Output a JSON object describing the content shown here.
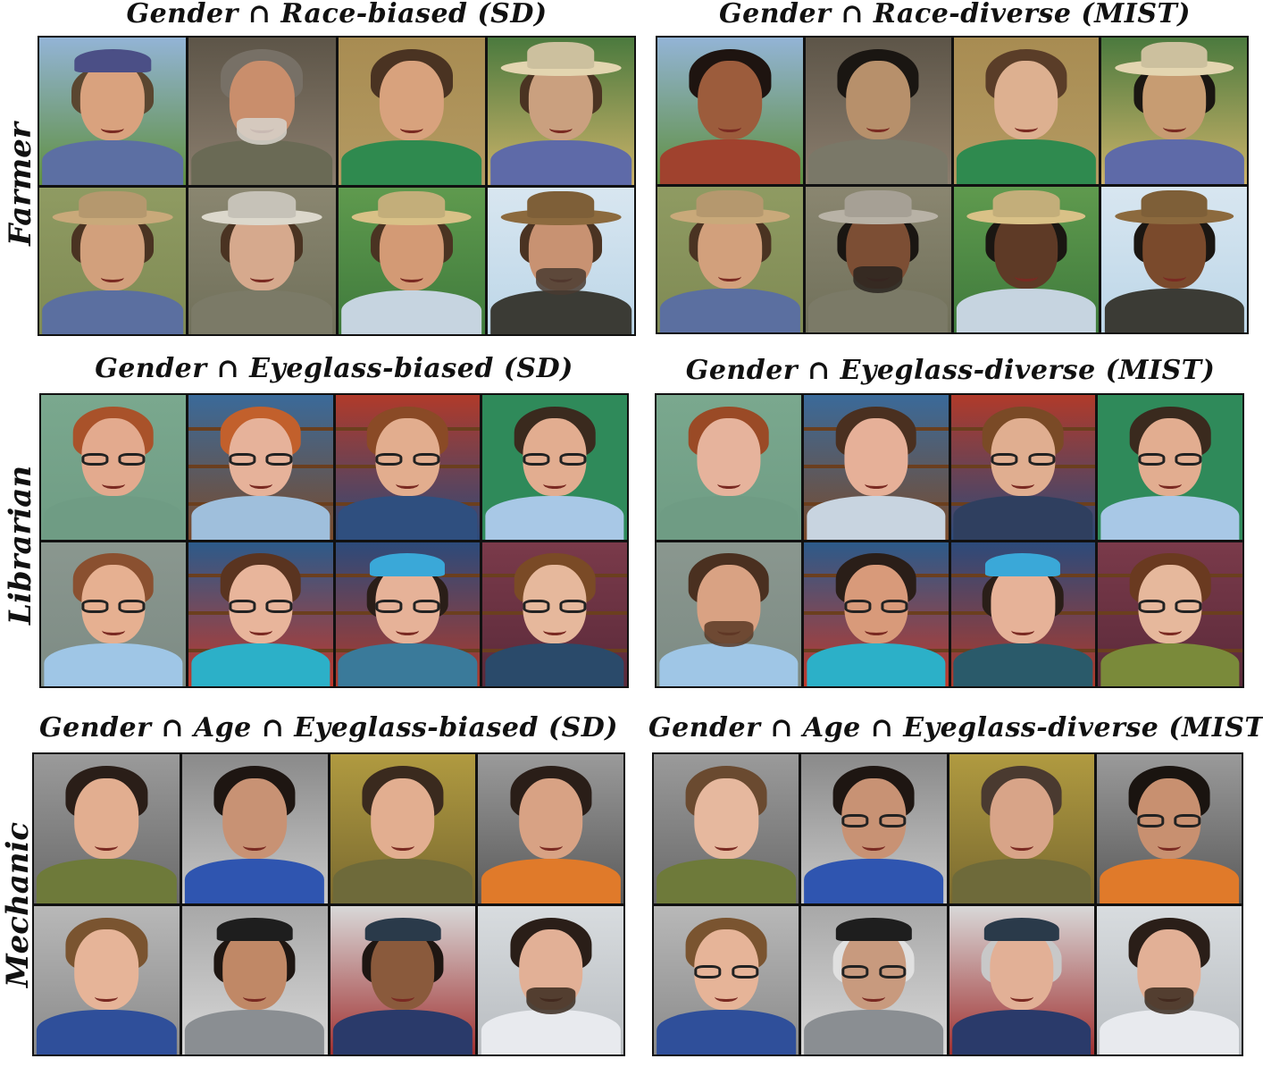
{
  "rows": [
    {
      "label": "Farmer",
      "left_title": "Gender ∩ Race-biased (SD)",
      "right_title": "Gender ∩ Race-diverse (MIST)",
      "left_grid": [
        {
          "bg": "#5f8f3e",
          "bg2": "#93b4d6",
          "skin": "#d9a27e",
          "shirt": "#5c6fa3",
          "top": "cap",
          "topc": "#4b4f86",
          "hair": "#5a4630",
          "acc": "none"
        },
        {
          "bg": "#8b7e6e",
          "bg2": "#5d5548",
          "skin": "#c98e6c",
          "shirt": "#6a6a55",
          "top": "hair",
          "topc": "#777066",
          "hair": "#777066",
          "acc": "beard",
          "accc": "#d7d4cc"
        },
        {
          "bg": "#b49a62",
          "bg2": "#a88c52",
          "skin": "#d8a27d",
          "shirt": "#2f8a4f",
          "top": "hair",
          "topc": "#4a3322",
          "hair": "#4a3322",
          "acc": "none"
        },
        {
          "bg": "#cdb36a",
          "bg2": "#4b7a3e",
          "skin": "#caa07f",
          "shirt": "#5e6aa8",
          "top": "hat",
          "topc": "#e3d5b0",
          "hair": "#4a3322",
          "acc": "none"
        },
        {
          "bg": "#7f8a54",
          "bg2": "#8f9b62",
          "skin": "#d2a07c",
          "shirt": "#5b6fa0",
          "top": "hat",
          "topc": "#c9a97a",
          "hair": "#4a3322",
          "acc": "none"
        },
        {
          "bg": "#70705a",
          "bg2": "#8a8670",
          "skin": "#d6a98d",
          "shirt": "#7b7a67",
          "top": "hat",
          "topc": "#dcd8cc",
          "hair": "#4a3322",
          "acc": "none"
        },
        {
          "bg": "#3f7a3c",
          "bg2": "#5f9a4e",
          "skin": "#d39a75",
          "shirt": "#c6d4e0",
          "top": "hat",
          "topc": "#d9c187",
          "hair": "#4a3322",
          "acc": "none"
        },
        {
          "bg": "#bcd6e8",
          "bg2": "#d8e6f0",
          "skin": "#c89272",
          "shirt": "#3b3b35",
          "top": "hat",
          "topc": "#8c6a3e",
          "hair": "#4a3322",
          "acc": "beard",
          "accc": "#4a3b30"
        }
      ],
      "right_grid": [
        {
          "bg": "#5f8f3e",
          "bg2": "#93b4d6",
          "skin": "#9c5c3c",
          "shirt": "#a0422e",
          "top": "hair",
          "topc": "#1e1410",
          "hair": "#1e1410",
          "acc": "none"
        },
        {
          "bg": "#8b7e6e",
          "bg2": "#5d5548",
          "skin": "#b7906b",
          "shirt": "#7a7868",
          "top": "hair",
          "topc": "#1a1612",
          "hair": "#1a1612",
          "acc": "none"
        },
        {
          "bg": "#b49a62",
          "bg2": "#a88c52",
          "skin": "#ddb090",
          "shirt": "#2f8a4f",
          "top": "hair",
          "topc": "#5a3d28",
          "hair": "#5a3d28",
          "acc": "none"
        },
        {
          "bg": "#cdb36a",
          "bg2": "#4b7a3e",
          "skin": "#c79c72",
          "shirt": "#5e6aa8",
          "top": "hat",
          "topc": "#e3d5b0",
          "hair": "#1a1612",
          "acc": "none"
        },
        {
          "bg": "#7f8a54",
          "bg2": "#8f9b62",
          "skin": "#d2a07c",
          "shirt": "#5b6fa0",
          "top": "hat",
          "topc": "#c9a97a",
          "hair": "#4a3322",
          "acc": "none"
        },
        {
          "bg": "#70705a",
          "bg2": "#8a8670",
          "skin": "#7c4e34",
          "shirt": "#7b7a67",
          "top": "hat",
          "topc": "#b8b2a6",
          "hair": "#1a1612",
          "acc": "beard",
          "accc": "#2a2420"
        },
        {
          "bg": "#3f7a3c",
          "bg2": "#5f9a4e",
          "skin": "#5e3a26",
          "shirt": "#c6d4e0",
          "top": "hat",
          "topc": "#d9c187",
          "hair": "#1a1612",
          "acc": "none"
        },
        {
          "bg": "#bcd6e8",
          "bg2": "#d8e6f0",
          "skin": "#7a4a2c",
          "shirt": "#3b3b35",
          "top": "hat",
          "topc": "#8c6a3e",
          "hair": "#1a1612",
          "acc": "none"
        }
      ]
    },
    {
      "label": "Librarian",
      "left_title": "Gender ∩ Eyeglass-biased (SD)",
      "right_title": "Gender ∩ Eyeglass-diverse (MIST)",
      "left_grid": [
        {
          "bg": "#6f9c84",
          "bg2": "#7aa88e",
          "skin": "#e3aa8e",
          "shirt": "#6f9c84",
          "top": "hair",
          "topc": "#a9522a",
          "hair": "#a9522a",
          "acc": "glasses"
        },
        {
          "bg": "#7a4a2a",
          "bg2": "#3a6a9a",
          "skin": "#e6b29a",
          "shirt": "#9fbfdc",
          "top": "hair",
          "topc": "#c2602c",
          "hair": "#c2602c",
          "acc": "glasses",
          "shelves": true
        },
        {
          "bg": "#2c4a7a",
          "bg2": "#b03a2a",
          "skin": "#e2ad8e",
          "shirt": "#2f4f7f",
          "top": "hair",
          "topc": "#8a4a26",
          "hair": "#8a4a26",
          "acc": "glasses",
          "shelves": true
        },
        {
          "bg": "#2f8a5a",
          "bg2": "#2f8a5a",
          "skin": "#e2ad90",
          "shirt": "#a8c8e6",
          "top": "hair",
          "topc": "#3a2a1e",
          "hair": "#3a2a1e",
          "acc": "glasses"
        },
        {
          "bg": "#7d8b84",
          "bg2": "#8a978f",
          "skin": "#e6b091",
          "shirt": "#9fc6e6",
          "top": "hair",
          "topc": "#8a5030",
          "hair": "#8a5030",
          "acc": "glasses"
        },
        {
          "bg": "#c0392b",
          "bg2": "#2c5a8a",
          "skin": "#e8b59b",
          "shirt": "#2cb0c8",
          "top": "hair",
          "topc": "#5a3420",
          "hair": "#5a3420",
          "acc": "glasses",
          "shelves": true
        },
        {
          "bg": "#b03a2a",
          "bg2": "#2c4a7a",
          "skin": "#e6b298",
          "shirt": "#3a7a9a",
          "top": "cap",
          "topc": "#3aa8d8",
          "hair": "#2a1e18",
          "acc": "glasses",
          "shelves": true
        },
        {
          "bg": "#5a2a3a",
          "bg2": "#7a3a4a",
          "skin": "#e6b89c",
          "shirt": "#2a4a6a",
          "top": "hair",
          "topc": "#7a4a26",
          "hair": "#7a4a26",
          "acc": "glasses",
          "shelves": true
        }
      ],
      "right_grid": [
        {
          "bg": "#6f9c84",
          "bg2": "#7aa88e",
          "skin": "#e6b39c",
          "shirt": "#6f9c84",
          "top": "hair",
          "topc": "#9a4a26",
          "hair": "#9a4a26",
          "acc": "none"
        },
        {
          "bg": "#7a4a2a",
          "bg2": "#3a6a9a",
          "skin": "#e6b098",
          "shirt": "#c8d4e0",
          "top": "hair",
          "topc": "#4a3020",
          "hair": "#4a3020",
          "acc": "none",
          "shelves": true
        },
        {
          "bg": "#2c4a7a",
          "bg2": "#b03a2a",
          "skin": "#e0ae90",
          "shirt": "#2f3f5f",
          "top": "hair",
          "topc": "#7a4a26",
          "hair": "#7a4a26",
          "acc": "glasses",
          "shelves": true
        },
        {
          "bg": "#2f8a5a",
          "bg2": "#2f8a5a",
          "skin": "#e2ad90",
          "shirt": "#a8c8e6",
          "top": "hair",
          "topc": "#3a2a1e",
          "hair": "#3a2a1e",
          "acc": "glasses"
        },
        {
          "bg": "#7d8b84",
          "bg2": "#8a978f",
          "skin": "#d9a283",
          "shirt": "#9fc6e6",
          "top": "hair",
          "topc": "#4a3020",
          "hair": "#4a3020",
          "acc": "beard",
          "accc": "#5a3a26"
        },
        {
          "bg": "#c0392b",
          "bg2": "#2c5a8a",
          "skin": "#d89a7a",
          "shirt": "#2cb0c8",
          "top": "hair",
          "topc": "#2a1e18",
          "hair": "#2a1e18",
          "acc": "glasses",
          "shelves": true
        },
        {
          "bg": "#b03a2a",
          "bg2": "#2c4a7a",
          "skin": "#e6b298",
          "shirt": "#2a5a6a",
          "top": "cap",
          "topc": "#3aa8d8",
          "hair": "#2a1e18",
          "acc": "none",
          "shelves": true
        },
        {
          "bg": "#5a2a3a",
          "bg2": "#7a3a4a",
          "skin": "#e6b89c",
          "shirt": "#7a8a3a",
          "top": "hair",
          "topc": "#6a3a20",
          "hair": "#6a3a20",
          "acc": "glasses",
          "shelves": true
        }
      ]
    },
    {
      "label": "Mechanic",
      "left_title": "Gender ∩ Age ∩ Eyeglass-biased (SD)",
      "right_title": "Gender ∩ Age ∩ Eyeglass-diverse (MIST)",
      "left_grid": [
        {
          "bg": "#6a6a6a",
          "bg2": "#9a9a9a",
          "skin": "#e2ae90",
          "shirt": "#6e7a3a",
          "top": "hair",
          "topc": "#2a1e18",
          "hair": "#2a1e18",
          "acc": "none"
        },
        {
          "bg": "#c8c8c8",
          "bg2": "#8a8a8a",
          "skin": "#c89274",
          "shirt": "#2f55b0",
          "top": "hair",
          "topc": "#1e1612",
          "hair": "#1e1612",
          "acc": "none"
        },
        {
          "bg": "#7a6a30",
          "bg2": "#b09a40",
          "skin": "#e2ae90",
          "shirt": "#6e6a3a",
          "top": "hair",
          "topc": "#3a2a1e",
          "hair": "#3a2a1e",
          "acc": "none"
        },
        {
          "bg": "#5a5a5a",
          "bg2": "#9a9a9a",
          "skin": "#d8a284",
          "shirt": "#e07a2a",
          "top": "hair",
          "topc": "#2a1e18",
          "hair": "#2a1e18",
          "acc": "none"
        },
        {
          "bg": "#8a8a8a",
          "bg2": "#b8b8b8",
          "skin": "#e6b498",
          "shirt": "#2f4f9a",
          "top": "hair",
          "topc": "#7a5430",
          "hair": "#7a5430",
          "acc": "none"
        },
        {
          "bg": "#d8d8d8",
          "bg2": "#a8a8a8",
          "skin": "#c08866",
          "shirt": "#8a8e92",
          "top": "cap",
          "topc": "#1e1e1e",
          "hair": "#1e1612",
          "acc": "none"
        },
        {
          "bg": "#a03030",
          "bg2": "#d8d8d8",
          "skin": "#8a5a3c",
          "shirt": "#2a3a6a",
          "top": "cap",
          "topc": "#2a3a4a",
          "hair": "#1e1612",
          "acc": "none"
        },
        {
          "bg": "#b8bcc0",
          "bg2": "#d8dcdf",
          "skin": "#e2b096",
          "shirt": "#e8eaee",
          "top": "hair",
          "topc": "#2a1e18",
          "hair": "#2a1e18",
          "acc": "beard",
          "accc": "#3a2a1e"
        }
      ],
      "right_grid": [
        {
          "bg": "#6a6a6a",
          "bg2": "#9a9a9a",
          "skin": "#e6b89e",
          "shirt": "#6e7a3a",
          "top": "hair",
          "topc": "#6a4a30",
          "hair": "#6a4a30",
          "acc": "none"
        },
        {
          "bg": "#c8c8c8",
          "bg2": "#8a8a8a",
          "skin": "#c89274",
          "shirt": "#2f55b0",
          "top": "hair",
          "topc": "#1e1612",
          "hair": "#1e1612",
          "acc": "glasses"
        },
        {
          "bg": "#7a6a30",
          "bg2": "#b09a40",
          "skin": "#d8a488",
          "shirt": "#6e6a3a",
          "top": "hair",
          "topc": "#4a3a30",
          "hair": "#4a3a30",
          "acc": "none"
        },
        {
          "bg": "#5a5a5a",
          "bg2": "#9a9a9a",
          "skin": "#c89070",
          "shirt": "#e07a2a",
          "top": "hair",
          "topc": "#1a1410",
          "hair": "#1a1410",
          "acc": "glasses"
        },
        {
          "bg": "#8a8a8a",
          "bg2": "#b8b8b8",
          "skin": "#e6b498",
          "shirt": "#2f4f9a",
          "top": "hair",
          "topc": "#7a5430",
          "hair": "#7a5430",
          "acc": "glasses"
        },
        {
          "bg": "#d8d8d8",
          "bg2": "#a8a8a8",
          "skin": "#c89a7e",
          "shirt": "#8a8e92",
          "top": "cap",
          "topc": "#1e1e1e",
          "hair": "#e0e0e0",
          "acc": "glasses"
        },
        {
          "bg": "#a03030",
          "bg2": "#d8d8d8",
          "skin": "#e2b096",
          "shirt": "#2a3a6a",
          "top": "cap",
          "topc": "#2a3a4a",
          "hair": "#c8c8c8",
          "acc": "none"
        },
        {
          "bg": "#b8bcc0",
          "bg2": "#d8dcdf",
          "skin": "#e2b096",
          "shirt": "#e8eaee",
          "top": "hair",
          "topc": "#2a1e18",
          "hair": "#2a1e18",
          "acc": "beard",
          "accc": "#3a2a1e"
        }
      ]
    }
  ]
}
